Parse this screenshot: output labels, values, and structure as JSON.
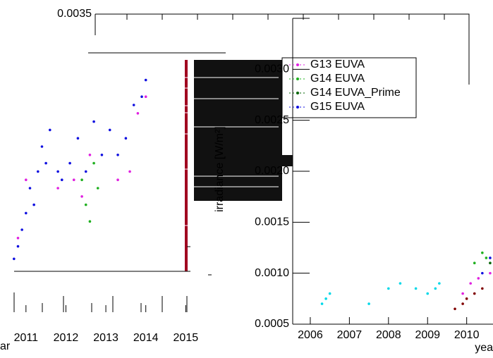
{
  "chart_data": [
    {
      "type": "scatter",
      "xlabel": "ar",
      "xlim": [
        2010.65,
        2015.1
      ],
      "xticks": [
        2011,
        2012,
        2013,
        2014,
        2015
      ],
      "ylim": [
        0.0008,
        0.0033
      ],
      "series": [
        {
          "name": "G15 EUVA",
          "color": "#1010e0",
          "x": [
            2010.7,
            2010.8,
            2010.9,
            2011.0,
            2011.1,
            2011.2,
            2011.3,
            2011.4,
            2011.5,
            2011.6,
            2011.8,
            2011.9,
            2012.1,
            2012.3,
            2012.5,
            2012.7,
            2012.9,
            2013.1,
            2013.3,
            2013.5,
            2013.7,
            2013.9,
            2014.0
          ],
          "values": [
            0.00095,
            0.0011,
            0.0013,
            0.0015,
            0.0018,
            0.0016,
            0.002,
            0.0023,
            0.0021,
            0.0025,
            0.002,
            0.0019,
            0.0021,
            0.0024,
            0.002,
            0.0026,
            0.0022,
            0.0025,
            0.0022,
            0.0024,
            0.0028,
            0.0029,
            0.0031
          ]
        },
        {
          "name": "G13 EUVA",
          "color": "#e020e0",
          "x": [
            2010.8,
            2011.0,
            2011.8,
            2012.2,
            2012.4,
            2012.6,
            2013.3,
            2013.6,
            2013.8,
            2014.0
          ],
          "values": [
            0.0012,
            0.0019,
            0.0018,
            0.0019,
            0.0017,
            0.0022,
            0.0019,
            0.002,
            0.0027,
            0.0029
          ]
        },
        {
          "name": "G14 EUVA",
          "color": "#20b020",
          "x": [
            2012.4,
            2012.5,
            2012.6,
            2012.7,
            2012.8
          ],
          "values": [
            0.0019,
            0.0016,
            0.0014,
            0.0021,
            0.0018
          ]
        }
      ]
    },
    {
      "type": "scatter",
      "xlabel": "yea",
      "ylabel": "irradiance [W/m²]",
      "xlim": [
        2005.55,
        2010.98
      ],
      "xticks": [
        2006,
        2007,
        2008,
        2009,
        2010
      ],
      "ylim": [
        0.0005,
        0.0035
      ],
      "yticks": [
        0.0005,
        {
          "value": 0.001,
          "label": "0.0010"
        },
        0.0015,
        {
          "value": 0.002,
          "label": "0.0020"
        },
        0.0025,
        {
          "value": 0.003,
          "label": "0.0030"
        },
        0.0035
      ],
      "legend": "upper-left",
      "series": [
        {
          "color": "#00d8e8",
          "x": [
            2006.3,
            2006.4,
            2006.5,
            2007.5,
            2008.0,
            2008.3,
            2008.7,
            2009.0,
            2009.2,
            2009.3
          ],
          "values": [
            0.0007,
            0.00075,
            0.0008,
            0.0007,
            0.00085,
            0.0009,
            0.00085,
            0.0008,
            0.00085,
            0.0009
          ]
        },
        {
          "color": "#800000",
          "x": [
            2009.7,
            2009.9,
            2010.0,
            2010.2,
            2010.4
          ],
          "values": [
            0.00065,
            0.0007,
            0.00075,
            0.0008,
            0.00085
          ]
        },
        {
          "name": "G13 EUVA",
          "color": "#e020e0",
          "x": [
            2009.9,
            2010.1,
            2010.3,
            2010.6
          ],
          "values": [
            0.0008,
            0.0009,
            0.00095,
            0.001
          ]
        },
        {
          "name": "G14 EUVA",
          "color": "#20b020",
          "x": [
            2010.2,
            2010.4,
            2010.5
          ],
          "values": [
            0.0011,
            0.0012,
            0.00115
          ]
        },
        {
          "name": "G14 EUVA_Prime",
          "color": "#006400",
          "x": [
            2010.6
          ],
          "values": [
            0.0011
          ]
        },
        {
          "name": "G15 EUVA",
          "color": "#1010e0",
          "x": [
            2010.4,
            2010.6,
            2010.8,
            2010.9
          ],
          "values": [
            0.001,
            0.00115,
            0.0012,
            0.0013
          ]
        }
      ]
    }
  ]
}
